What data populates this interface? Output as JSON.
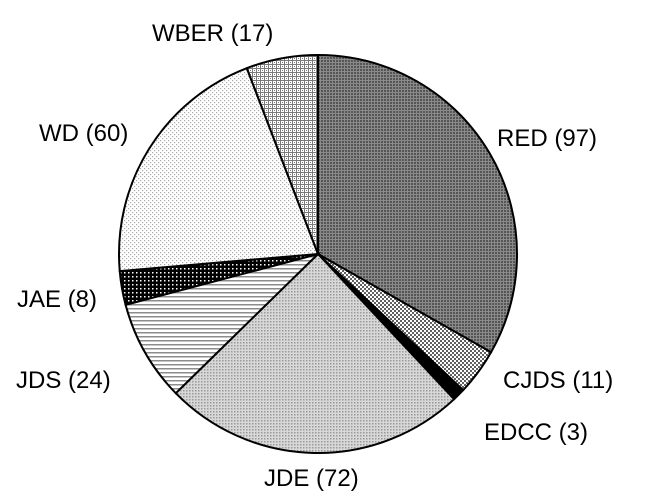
{
  "chart_data": {
    "type": "pie",
    "title": "",
    "start": "12 o'clock",
    "direction": "clockwise",
    "slices": [
      {
        "label": "RED (97)",
        "category": "RED",
        "value": 97,
        "fill": "#6e6e6e",
        "pattern": "dense-dots"
      },
      {
        "label": "CJDS (11)",
        "category": "CJDS",
        "value": 11,
        "fill": "#b5b5b5",
        "pattern": "checker"
      },
      {
        "label": "EDCC (3)",
        "category": "EDCC",
        "value": 3,
        "fill": "#000000",
        "pattern": "solid"
      },
      {
        "label": "JDE (72)",
        "category": "JDE",
        "value": 72,
        "fill": "#c4c4c4",
        "pattern": "fine-dots"
      },
      {
        "label": "JDS (24)",
        "category": "JDS",
        "value": 24,
        "fill": "#d9d9d9",
        "pattern": "horizontal-lines"
      },
      {
        "label": "JAE (8)",
        "category": "JAE",
        "value": 8,
        "fill": "#1a1a1a",
        "pattern": "dark-checker"
      },
      {
        "label": "WD (60)",
        "category": "WD",
        "value": 60,
        "fill": "#ededed",
        "pattern": "light-dots"
      },
      {
        "label": "WBER (17)",
        "category": "WBER",
        "value": 17,
        "fill": "#b0b0b0",
        "pattern": "crosshatch"
      }
    ]
  }
}
